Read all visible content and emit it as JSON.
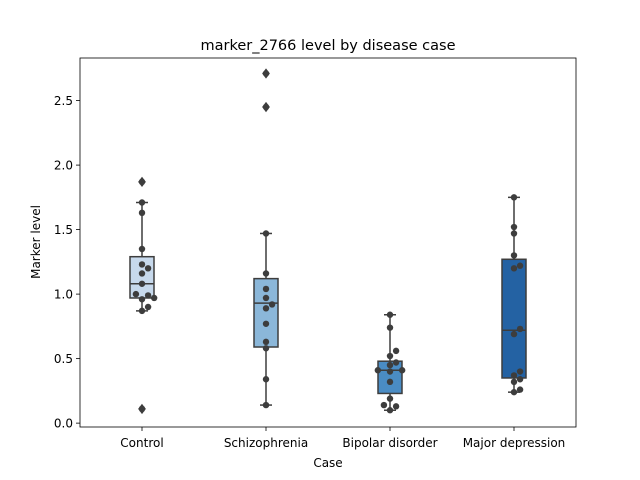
{
  "chart_data": {
    "type": "box",
    "title": "marker_2766 level by disease case",
    "xlabel": "Case",
    "ylabel": "Marker level",
    "ylim": [
      -0.03,
      2.83
    ],
    "yticks": [
      0.0,
      0.5,
      1.0,
      1.5,
      2.0,
      2.5
    ],
    "ytick_labels": [
      "0.0",
      "0.5",
      "1.0",
      "1.5",
      "2.0",
      "2.5"
    ],
    "categories": [
      "Control",
      "Schizophrenia",
      "Bipolar disorder",
      "Major depression"
    ],
    "colors": [
      "#c7d9ec",
      "#8bb7d9",
      "#4a8cc4",
      "#2462a3"
    ],
    "groups": [
      {
        "name": "Control",
        "q1": 0.97,
        "median": 1.08,
        "q3": 1.29,
        "whisker_low": 0.87,
        "whisker_high": 1.71,
        "outliers": [
          0.11,
          1.87
        ],
        "points": [
          0.11,
          0.87,
          0.9,
          0.96,
          0.97,
          0.99,
          1.0,
          1.08,
          1.16,
          1.2,
          1.23,
          1.35,
          1.63,
          1.71,
          1.87
        ]
      },
      {
        "name": "Schizophrenia",
        "q1": 0.59,
        "median": 0.93,
        "q3": 1.12,
        "whisker_low": 0.14,
        "whisker_high": 1.47,
        "outliers": [
          2.45,
          2.71
        ],
        "points": [
          0.14,
          0.34,
          0.58,
          0.63,
          0.77,
          0.89,
          0.92,
          0.97,
          1.04,
          1.16,
          1.47,
          2.45,
          2.71
        ]
      },
      {
        "name": "Bipolar disorder",
        "q1": 0.23,
        "median": 0.41,
        "q3": 0.48,
        "whisker_low": 0.1,
        "whisker_high": 0.84,
        "outliers": [],
        "points": [
          0.1,
          0.13,
          0.14,
          0.19,
          0.32,
          0.4,
          0.41,
          0.41,
          0.45,
          0.47,
          0.52,
          0.56,
          0.74,
          0.84
        ]
      },
      {
        "name": "Major depression",
        "q1": 0.35,
        "median": 0.72,
        "q3": 1.27,
        "whisker_low": 0.24,
        "whisker_high": 1.75,
        "outliers": [],
        "points": [
          0.24,
          0.26,
          0.32,
          0.34,
          0.37,
          0.4,
          0.69,
          0.73,
          1.2,
          1.22,
          1.3,
          1.47,
          1.52,
          1.75
        ]
      }
    ]
  }
}
